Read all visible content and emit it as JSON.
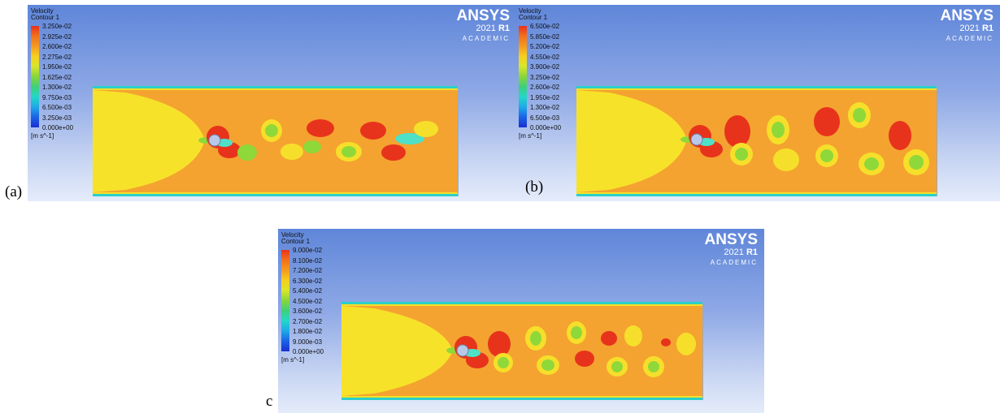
{
  "panels": [
    {
      "caption": "(a)",
      "title_line1": "Velocity",
      "title_line2": "Contour 1",
      "legend_labels": [
        "3.250e-02",
        "2.925e-02",
        "2.600e-02",
        "2.275e-02",
        "1.950e-02",
        "1.625e-02",
        "1.300e-02",
        "9.750e-03",
        "6.500e-03",
        "3.250e-03",
        "0.000e+00"
      ],
      "unit": "[m s^-1]",
      "brand": "ANSYS",
      "version": "2021",
      "release": "R1",
      "edition": "ACADEMIC"
    },
    {
      "caption": "(b)",
      "title_line1": "Velocity",
      "title_line2": "Contour 1",
      "legend_labels": [
        "6.500e-02",
        "5.850e-02",
        "5.200e-02",
        "4.550e-02",
        "3.900e-02",
        "3.250e-02",
        "2.600e-02",
        "1.950e-02",
        "1.300e-02",
        "6.500e-03",
        "0.000e+00"
      ],
      "unit": "[m s^-1]",
      "brand": "ANSYS",
      "version": "2021",
      "release": "R1",
      "edition": "ACADEMIC"
    },
    {
      "caption": "c",
      "title_line1": "Velocity",
      "title_line2": "Contour 1",
      "legend_labels": [
        "9.000e-02",
        "8.100e-02",
        "7.200e-02",
        "6.300e-02",
        "5.400e-02",
        "4.500e-02",
        "3.600e-02",
        "2.700e-02",
        "1.800e-02",
        "9.000e-03",
        "0.000e+00"
      ],
      "unit": "[m s^-1]",
      "brand": "ANSYS",
      "version": "2021",
      "release": "R1",
      "edition": "ACADEMIC"
    }
  ],
  "legend_colors": [
    "#e8331c",
    "#f2701c",
    "#f59a1f",
    "#f7cf1e",
    "#d8e62a",
    "#88d63a",
    "#3fd07a",
    "#22d8c8",
    "#1fa8e8",
    "#1a62e6",
    "#1a2fd0"
  ],
  "flow_colors": {
    "background_orange": "#f4a330",
    "inlet_yellow": "#f7e22a",
    "wake_red": "#e8331c",
    "vortex_yellow": "#f6df2a",
    "vortex_green": "#8fd83a",
    "jet_cyan": "#4fe0c8",
    "wall_cyan": "#2ad0c8",
    "cylinder": "#b8c8e8"
  }
}
